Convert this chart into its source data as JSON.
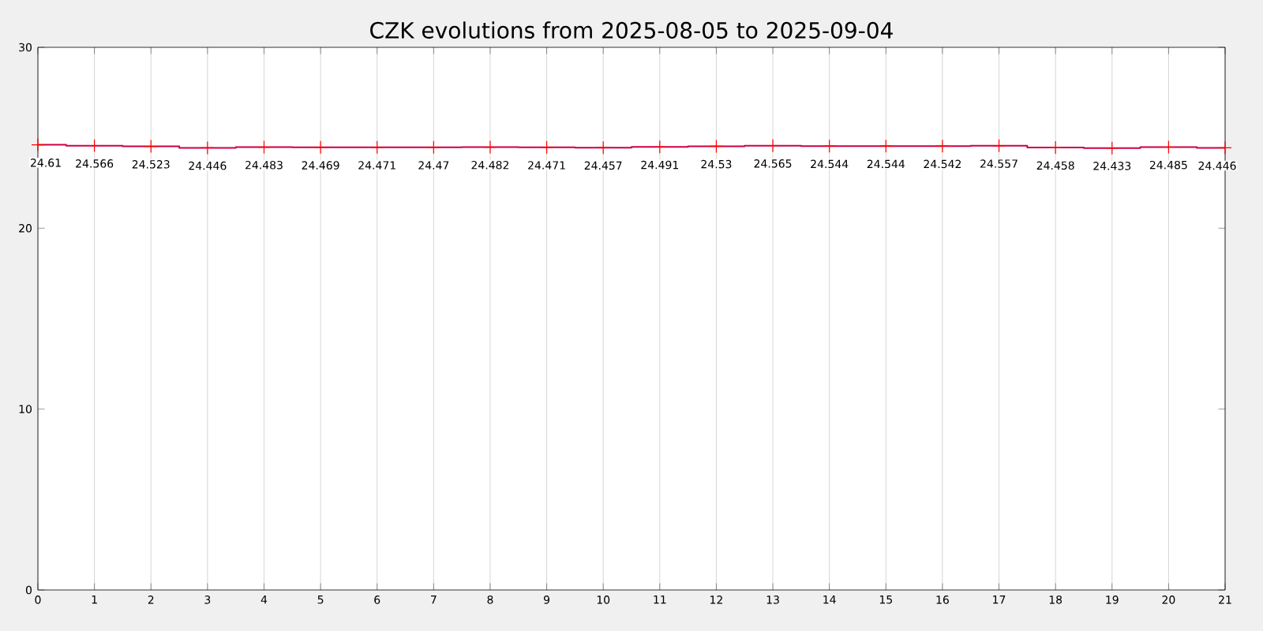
{
  "chart_data": {
    "type": "step",
    "title": "CZK evolutions from 2025-08-05 to 2025-09-04",
    "x": [
      0,
      1,
      2,
      3,
      4,
      5,
      6,
      7,
      8,
      9,
      10,
      11,
      12,
      13,
      14,
      15,
      16,
      17,
      18,
      19,
      20,
      21
    ],
    "series": [
      {
        "color": "#cc0044",
        "values": [
          24.61,
          24.566,
          24.523,
          24.446,
          24.483,
          24.469,
          24.471,
          24.47,
          24.482,
          24.471,
          24.457,
          24.491,
          24.53,
          24.565,
          24.544,
          24.544,
          24.542,
          24.557,
          24.458,
          24.433,
          24.485,
          24.446
        ]
      }
    ],
    "xlim": [
      0,
      21
    ],
    "ylim": [
      0,
      30
    ],
    "xticks": [
      0,
      1,
      2,
      3,
      4,
      5,
      6,
      7,
      8,
      9,
      10,
      11,
      12,
      13,
      14,
      15,
      16,
      17,
      18,
      19,
      20,
      21
    ],
    "yticks": [
      0,
      10,
      20,
      30
    ],
    "grid": "x",
    "marker": "cross",
    "data_labels": true
  }
}
